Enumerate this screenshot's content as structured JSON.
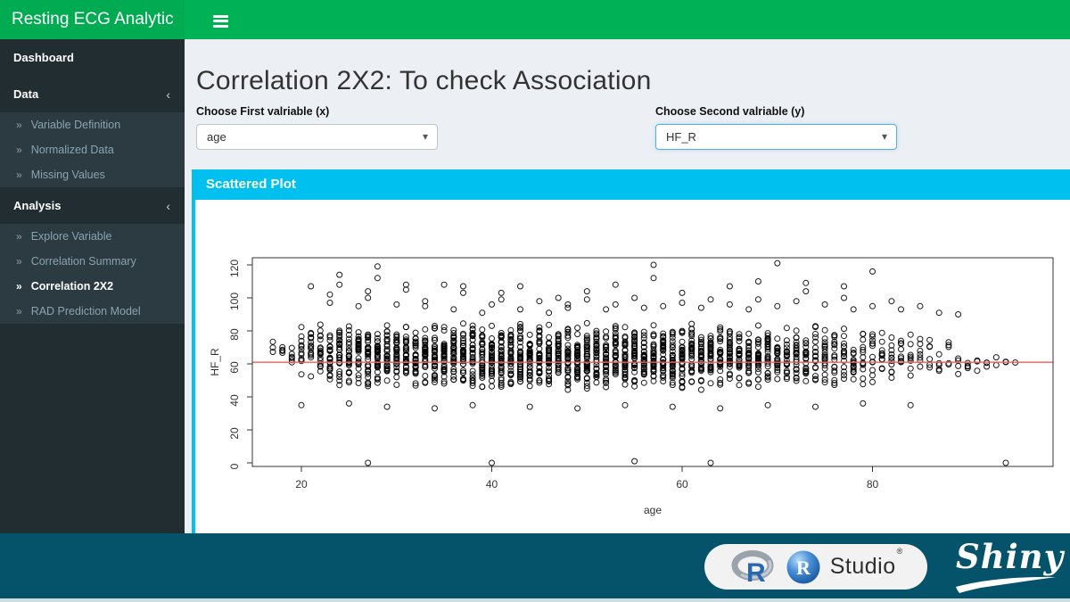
{
  "app": {
    "title": "Resting ECG Analytic"
  },
  "icons": {
    "chevron_left": "‹",
    "angle_double_right": "»",
    "caret_down": "▾"
  },
  "colors": {
    "header_green": "#00B156",
    "sidebar_dark": "#222d32",
    "submenu_dark": "#2c3b41",
    "box_cyan": "#00c0ef",
    "footer_teal": "#05536A",
    "page_bg": "#ecf0f5",
    "mean_line_red": "#ff5a52",
    "focus_blue": "#5aabde"
  },
  "sidebar": {
    "menu": [
      {
        "label": "Dashboard",
        "children": []
      },
      {
        "label": "Data",
        "children": [
          "Variable Definition",
          "Normalized Data",
          "Missing Values"
        ]
      },
      {
        "label": "Analysis",
        "children": [
          "Explore Variable",
          "Correlation Summary",
          "Correlation 2X2",
          "RAD Prediction Model"
        ],
        "active_child": "Correlation 2X2"
      }
    ]
  },
  "main": {
    "title": "Correlation 2X2: To check Association",
    "select_x": {
      "label": "Choose First valriable (x)",
      "value": "age"
    },
    "select_y": {
      "label": "Choose Second valriable (y)",
      "value": "HF_R"
    },
    "box_title": "Scattered Plot"
  },
  "footer": {
    "r_letter": "R",
    "rstudio_letter": "R",
    "studio_word": "Studio",
    "registered": "®",
    "shiny_word": "Shiny"
  },
  "chart_data": {
    "type": "scatter",
    "xlabel": "age",
    "ylabel": "HF_R",
    "xticks": [
      20,
      40,
      60,
      80
    ],
    "yticks": [
      0,
      20,
      40,
      60,
      80,
      100,
      120
    ],
    "xlim": [
      14.8,
      99
    ],
    "ylim": [
      -2,
      124
    ],
    "point_style": "open-circle",
    "mean_line": {
      "y": 61,
      "color": "#ff5a52"
    },
    "columns_format": [
      "age",
      "count",
      "ymin",
      "ymax"
    ],
    "columns": [
      [
        17,
        3,
        62,
        77
      ],
      [
        18,
        4,
        60,
        75
      ],
      [
        19,
        6,
        58,
        76
      ],
      [
        20,
        12,
        52,
        90
      ],
      [
        21,
        15,
        50,
        88
      ],
      [
        22,
        18,
        48,
        86
      ],
      [
        23,
        24,
        46,
        86
      ],
      [
        24,
        28,
        45,
        85
      ],
      [
        25,
        27,
        46,
        86
      ],
      [
        26,
        29,
        45,
        84
      ],
      [
        27,
        31,
        44,
        86
      ],
      [
        28,
        33,
        44,
        85
      ],
      [
        29,
        30,
        45,
        84
      ],
      [
        30,
        32,
        44,
        86
      ],
      [
        31,
        30,
        45,
        85
      ],
      [
        32,
        32,
        44,
        84
      ],
      [
        33,
        30,
        45,
        86
      ],
      [
        34,
        32,
        44,
        85
      ],
      [
        35,
        33,
        43,
        86
      ],
      [
        36,
        32,
        44,
        85
      ],
      [
        37,
        33,
        44,
        86
      ],
      [
        38,
        34,
        43,
        85
      ],
      [
        39,
        32,
        44,
        84
      ],
      [
        40,
        34,
        43,
        86
      ],
      [
        41,
        35,
        44,
        85
      ],
      [
        42,
        33,
        43,
        86
      ],
      [
        43,
        35,
        44,
        85
      ],
      [
        44,
        34,
        43,
        84
      ],
      [
        45,
        35,
        44,
        86
      ],
      [
        46,
        34,
        43,
        85
      ],
      [
        47,
        35,
        44,
        86
      ],
      [
        48,
        34,
        43,
        85
      ],
      [
        49,
        35,
        44,
        84
      ],
      [
        50,
        35,
        43,
        86
      ],
      [
        51,
        35,
        44,
        85
      ],
      [
        52,
        34,
        43,
        84
      ],
      [
        53,
        35,
        44,
        86
      ],
      [
        54,
        34,
        43,
        85
      ],
      [
        55,
        35,
        44,
        86
      ],
      [
        56,
        34,
        43,
        85
      ],
      [
        57,
        33,
        44,
        86
      ],
      [
        58,
        33,
        43,
        85
      ],
      [
        59,
        32,
        44,
        84
      ],
      [
        60,
        32,
        43,
        85
      ],
      [
        61,
        31,
        44,
        86
      ],
      [
        62,
        31,
        43,
        84
      ],
      [
        63,
        30,
        44,
        85
      ],
      [
        64,
        29,
        43,
        85
      ],
      [
        65,
        29,
        44,
        86
      ],
      [
        66,
        28,
        43,
        84
      ],
      [
        67,
        27,
        44,
        85
      ],
      [
        68,
        27,
        43,
        86
      ],
      [
        69,
        25,
        44,
        84
      ],
      [
        70,
        25,
        43,
        85
      ],
      [
        71,
        23,
        44,
        84
      ],
      [
        72,
        23,
        43,
        85
      ],
      [
        73,
        21,
        44,
        84
      ],
      [
        74,
        19,
        43,
        85
      ],
      [
        75,
        19,
        44,
        84
      ],
      [
        76,
        17,
        44,
        85
      ],
      [
        77,
        15,
        45,
        84
      ],
      [
        78,
        14,
        44,
        83
      ],
      [
        79,
        13,
        45,
        84
      ],
      [
        80,
        12,
        44,
        83
      ],
      [
        81,
        11,
        45,
        82
      ],
      [
        82,
        11,
        44,
        83
      ],
      [
        83,
        9,
        45,
        82
      ],
      [
        84,
        8,
        46,
        82
      ],
      [
        85,
        7,
        45,
        80
      ],
      [
        86,
        6,
        46,
        80
      ],
      [
        87,
        5,
        48,
        78
      ],
      [
        88,
        5,
        50,
        76
      ],
      [
        89,
        4,
        52,
        72
      ],
      [
        90,
        4,
        50,
        70
      ],
      [
        91,
        3,
        52,
        68
      ],
      [
        92,
        3,
        55,
        66
      ],
      [
        93,
        2,
        56,
        64
      ],
      [
        94,
        2,
        58,
        63
      ],
      [
        95,
        1,
        59,
        62
      ]
    ],
    "outliers_format": [
      "age",
      "y"
    ],
    "outliers": [
      [
        21,
        107
      ],
      [
        23,
        97
      ],
      [
        23,
        102
      ],
      [
        24,
        108
      ],
      [
        24,
        114
      ],
      [
        26,
        95
      ],
      [
        27,
        100
      ],
      [
        27,
        104
      ],
      [
        28,
        112
      ],
      [
        28,
        119
      ],
      [
        30,
        96
      ],
      [
        31,
        105
      ],
      [
        31,
        108
      ],
      [
        33,
        95
      ],
      [
        33,
        98
      ],
      [
        35,
        108
      ],
      [
        36,
        93
      ],
      [
        37,
        103
      ],
      [
        37,
        107
      ],
      [
        39,
        91
      ],
      [
        40,
        96
      ],
      [
        41,
        99
      ],
      [
        41,
        103
      ],
      [
        43,
        93
      ],
      [
        43,
        107
      ],
      [
        45,
        98
      ],
      [
        46,
        91
      ],
      [
        47,
        100
      ],
      [
        48,
        94
      ],
      [
        48,
        96
      ],
      [
        50,
        99
      ],
      [
        50,
        104
      ],
      [
        52,
        93
      ],
      [
        53,
        96
      ],
      [
        53,
        108
      ],
      [
        55,
        100
      ],
      [
        56,
        94
      ],
      [
        57,
        112
      ],
      [
        57,
        120
      ],
      [
        58,
        95
      ],
      [
        60,
        97
      ],
      [
        60,
        103
      ],
      [
        62,
        94
      ],
      [
        63,
        99
      ],
      [
        65,
        96
      ],
      [
        65,
        107
      ],
      [
        67,
        93
      ],
      [
        68,
        99
      ],
      [
        68,
        110
      ],
      [
        70,
        95
      ],
      [
        70,
        121
      ],
      [
        72,
        98
      ],
      [
        73,
        104
      ],
      [
        73,
        109
      ],
      [
        75,
        96
      ],
      [
        77,
        100
      ],
      [
        77,
        107
      ],
      [
        78,
        93
      ],
      [
        80,
        95
      ],
      [
        80,
        116
      ],
      [
        82,
        98
      ],
      [
        83,
        93
      ],
      [
        85,
        95
      ],
      [
        87,
        91
      ],
      [
        89,
        90
      ],
      [
        27,
        0
      ],
      [
        40,
        0
      ],
      [
        55,
        1
      ],
      [
        63,
        0
      ],
      [
        94,
        0
      ],
      [
        20,
        35
      ],
      [
        25,
        36
      ],
      [
        29,
        34
      ],
      [
        34,
        33
      ],
      [
        38,
        35
      ],
      [
        44,
        34
      ],
      [
        49,
        33
      ],
      [
        54,
        35
      ],
      [
        59,
        34
      ],
      [
        64,
        33
      ],
      [
        69,
        35
      ],
      [
        74,
        34
      ],
      [
        79,
        36
      ],
      [
        84,
        35
      ]
    ]
  }
}
